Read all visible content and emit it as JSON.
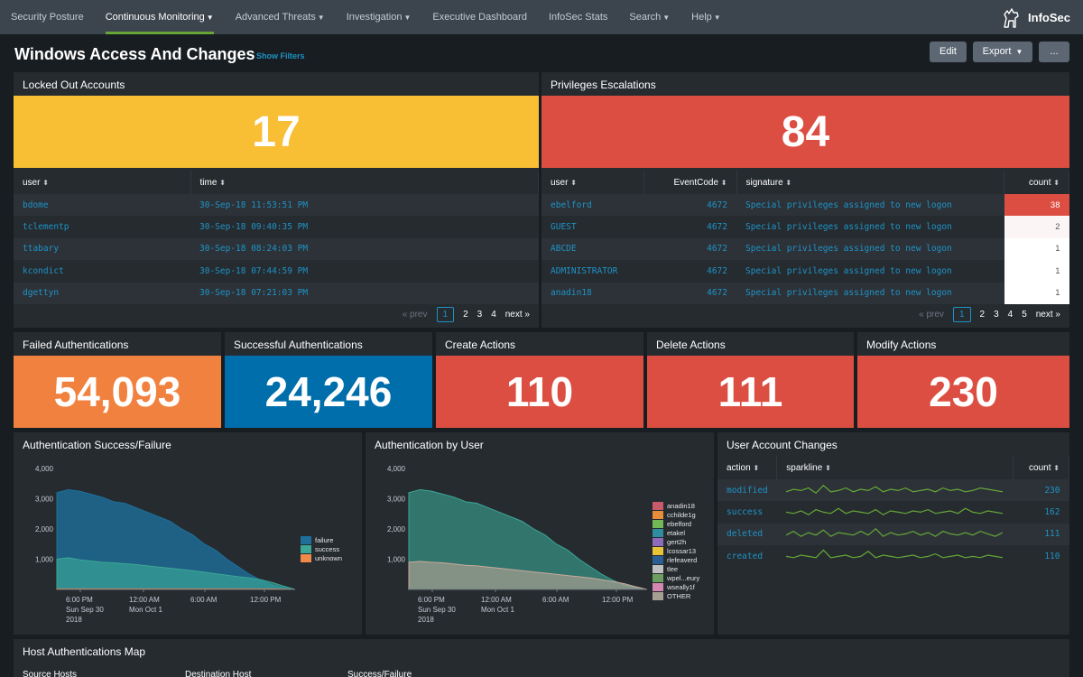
{
  "nav": {
    "items": [
      {
        "label": "Security Posture",
        "caret": false,
        "active": false
      },
      {
        "label": "Continuous Monitoring",
        "caret": true,
        "active": true
      },
      {
        "label": "Advanced Threats",
        "caret": true,
        "active": false
      },
      {
        "label": "Investigation",
        "caret": true,
        "active": false
      },
      {
        "label": "Executive Dashboard",
        "caret": false,
        "active": false
      },
      {
        "label": "InfoSec Stats",
        "caret": false,
        "active": false
      },
      {
        "label": "Search",
        "caret": true,
        "active": false
      },
      {
        "label": "Help",
        "caret": true,
        "active": false
      }
    ],
    "brand": "InfoSec",
    "brand_icon": "dog-logo-icon"
  },
  "header": {
    "title": "Windows Access And Changes",
    "show_filters": "Show Filters",
    "edit": "Edit",
    "export": "Export",
    "more": "..."
  },
  "locked": {
    "title": "Locked Out Accounts",
    "value": "17",
    "color": "#f8be34",
    "columns": [
      "user",
      "time"
    ],
    "rows": [
      [
        "bdome",
        "30-Sep-18 11:53:51 PM"
      ],
      [
        "tclementp",
        "30-Sep-18 09:40:35 PM"
      ],
      [
        "ttabary",
        "30-Sep-18 08:24:03 PM"
      ],
      [
        "kcondict",
        "30-Sep-18 07:44:59 PM"
      ],
      [
        "dgettyn",
        "30-Sep-18 07:21:03 PM"
      ]
    ],
    "pager": {
      "prev": "« prev",
      "pages": [
        "1",
        "2",
        "3",
        "4"
      ],
      "next": "next »"
    }
  },
  "priv": {
    "title": "Privileges Escalations",
    "value": "84",
    "color": "#dc4e41",
    "columns": [
      "user",
      "EventCode",
      "signature",
      "count"
    ],
    "rows": [
      [
        "ebelford",
        "4672",
        "Special privileges assigned to new logon",
        "38"
      ],
      [
        "GUEST",
        "4672",
        "Special privileges assigned to new logon",
        "2"
      ],
      [
        "ABCDE",
        "4672",
        "Special privileges assigned to new logon",
        "1"
      ],
      [
        "ADMINISTRATOR",
        "4672",
        "Special privileges assigned to new logon",
        "1"
      ],
      [
        "anadin18",
        "4672",
        "Special privileges assigned to new logon",
        "1"
      ]
    ],
    "count_colors": [
      "#dc4e41",
      "#fbf6f5",
      "#ffffff",
      "#ffffff",
      "#ffffff"
    ],
    "pager": {
      "prev": "« prev",
      "pages": [
        "1",
        "2",
        "3",
        "4",
        "5"
      ],
      "next": "next »"
    }
  },
  "stats": [
    {
      "title": "Failed Authentications",
      "value": "54,093",
      "color": "#f1813f"
    },
    {
      "title": "Successful Authentications",
      "value": "24,246",
      "color": "#006eaa"
    },
    {
      "title": "Create Actions",
      "value": "110",
      "color": "#dc4e41"
    },
    {
      "title": "Delete Actions",
      "value": "111",
      "color": "#dc4e41"
    },
    {
      "title": "Modify Actions",
      "value": "230",
      "color": "#dc4e41"
    }
  ],
  "chart_data": [
    {
      "type": "area",
      "title": "Authentication Success/Failure",
      "y_ticks": [
        "4,000",
        "3,000",
        "2,000",
        "1,000"
      ],
      "ylim": [
        0,
        4000
      ],
      "x_ticks": [
        {
          "lines": [
            "6:00 PM",
            "Sun Sep 30",
            "2018"
          ]
        },
        {
          "lines": [
            "12:00 AM",
            "Mon Oct 1"
          ]
        },
        {
          "lines": [
            "6:00 AM"
          ]
        },
        {
          "lines": [
            "12:00 PM"
          ]
        }
      ],
      "legend": [
        "failure",
        "success",
        "unknown"
      ],
      "colors": [
        "#1e6f9a",
        "#3ba796",
        "#f08a4b"
      ],
      "series": [
        {
          "name": "failure",
          "values": [
            3200,
            3300,
            3250,
            3150,
            3050,
            2900,
            2850,
            2700,
            2550,
            2400,
            2250,
            2000,
            1800,
            1500,
            1300,
            1000,
            750,
            500,
            300,
            150,
            60,
            0
          ]
        },
        {
          "name": "success",
          "values": [
            1000,
            1050,
            980,
            940,
            900,
            880,
            850,
            820,
            780,
            740,
            700,
            660,
            620,
            570,
            520,
            470,
            420,
            380,
            320,
            230,
            110,
            0
          ]
        },
        {
          "name": "unknown",
          "values": [
            20,
            20,
            20,
            20,
            20,
            20,
            20,
            20,
            20,
            20,
            20,
            20,
            20,
            20,
            20,
            20,
            20,
            20,
            20,
            20,
            10,
            0
          ]
        }
      ]
    },
    {
      "type": "area",
      "title": "Authentication by User",
      "y_ticks": [
        "4,000",
        "3,000",
        "2,000",
        "1,000"
      ],
      "ylim": [
        0,
        4000
      ],
      "x_ticks": [
        {
          "lines": [
            "6:00 PM",
            "Sun Sep 30",
            "2018"
          ]
        },
        {
          "lines": [
            "12:00 AM",
            "Mon Oct 1"
          ]
        },
        {
          "lines": [
            "6:00 AM"
          ]
        },
        {
          "lines": [
            "12:00 PM"
          ]
        }
      ],
      "legend": [
        "anadin18",
        "cchilde1g",
        "ebelford",
        "etakel",
        "gert2h",
        "lcossar13",
        "rlefeaverd",
        "tlee",
        "wpel...eury",
        "wseally1f",
        "OTHER"
      ],
      "colors": [
        "#c85a6b",
        "#e88d3b",
        "#72b857",
        "#2e8d9e",
        "#8d6bba",
        "#e8c337",
        "#2b5f93",
        "#c0c0c0",
        "#6c9e5f",
        "#d487b0",
        "#a89f93"
      ],
      "series": [
        {
          "name": "OTHER",
          "values": [
            3200,
            3300,
            3250,
            3150,
            3050,
            2900,
            2850,
            2700,
            2550,
            2400,
            2250,
            2000,
            1800,
            1500,
            1300,
            1000,
            750,
            500,
            300,
            150,
            60,
            0
          ]
        },
        {
          "name": "anadin18",
          "values": [
            900,
            930,
            900,
            880,
            840,
            800,
            780,
            740,
            700,
            660,
            620,
            580,
            540,
            500,
            460,
            420,
            380,
            320,
            260,
            190,
            90,
            0
          ]
        }
      ]
    }
  ],
  "changes": {
    "title": "User Account Changes",
    "columns": [
      "action",
      "sparkline",
      "count"
    ],
    "rows": [
      {
        "action": "modified",
        "count": "230",
        "spark": [
          3,
          5,
          4,
          6,
          2,
          8,
          3,
          4,
          6,
          3,
          5,
          4,
          7,
          3,
          5,
          4,
          6,
          3,
          4,
          5,
          3,
          6,
          4,
          5,
          3,
          4,
          6,
          5,
          4,
          3
        ]
      },
      {
        "action": "success",
        "count": "162",
        "spark": [
          4,
          3,
          5,
          2,
          6,
          4,
          3,
          7,
          3,
          5,
          4,
          3,
          6,
          2,
          5,
          4,
          3,
          5,
          4,
          6,
          3,
          4,
          5,
          3,
          7,
          4,
          3,
          5,
          4,
          3
        ]
      },
      {
        "action": "deleted",
        "count": "111",
        "spark": [
          3,
          6,
          2,
          5,
          3,
          7,
          2,
          5,
          4,
          3,
          6,
          3,
          8,
          2,
          5,
          3,
          4,
          6,
          3,
          5,
          2,
          6,
          4,
          3,
          5,
          3,
          6,
          4,
          2,
          5
        ]
      },
      {
        "action": "created",
        "count": "110",
        "spark": [
          4,
          3,
          5,
          4,
          3,
          9,
          3,
          4,
          5,
          3,
          4,
          8,
          3,
          5,
          4,
          3,
          4,
          5,
          3,
          4,
          6,
          3,
          4,
          5,
          3,
          4,
          3,
          5,
          4,
          3
        ]
      }
    ]
  },
  "map": {
    "title": "Host Authentications Map",
    "columns": [
      "Source Hosts",
      "Destination Host",
      "Success/Failure"
    ]
  },
  "colors": {
    "accent": "#65a637",
    "link": "#1e93c6",
    "panel_bg": "#262b30",
    "page_bg": "#171d21",
    "nav_bg": "#3c444d"
  }
}
